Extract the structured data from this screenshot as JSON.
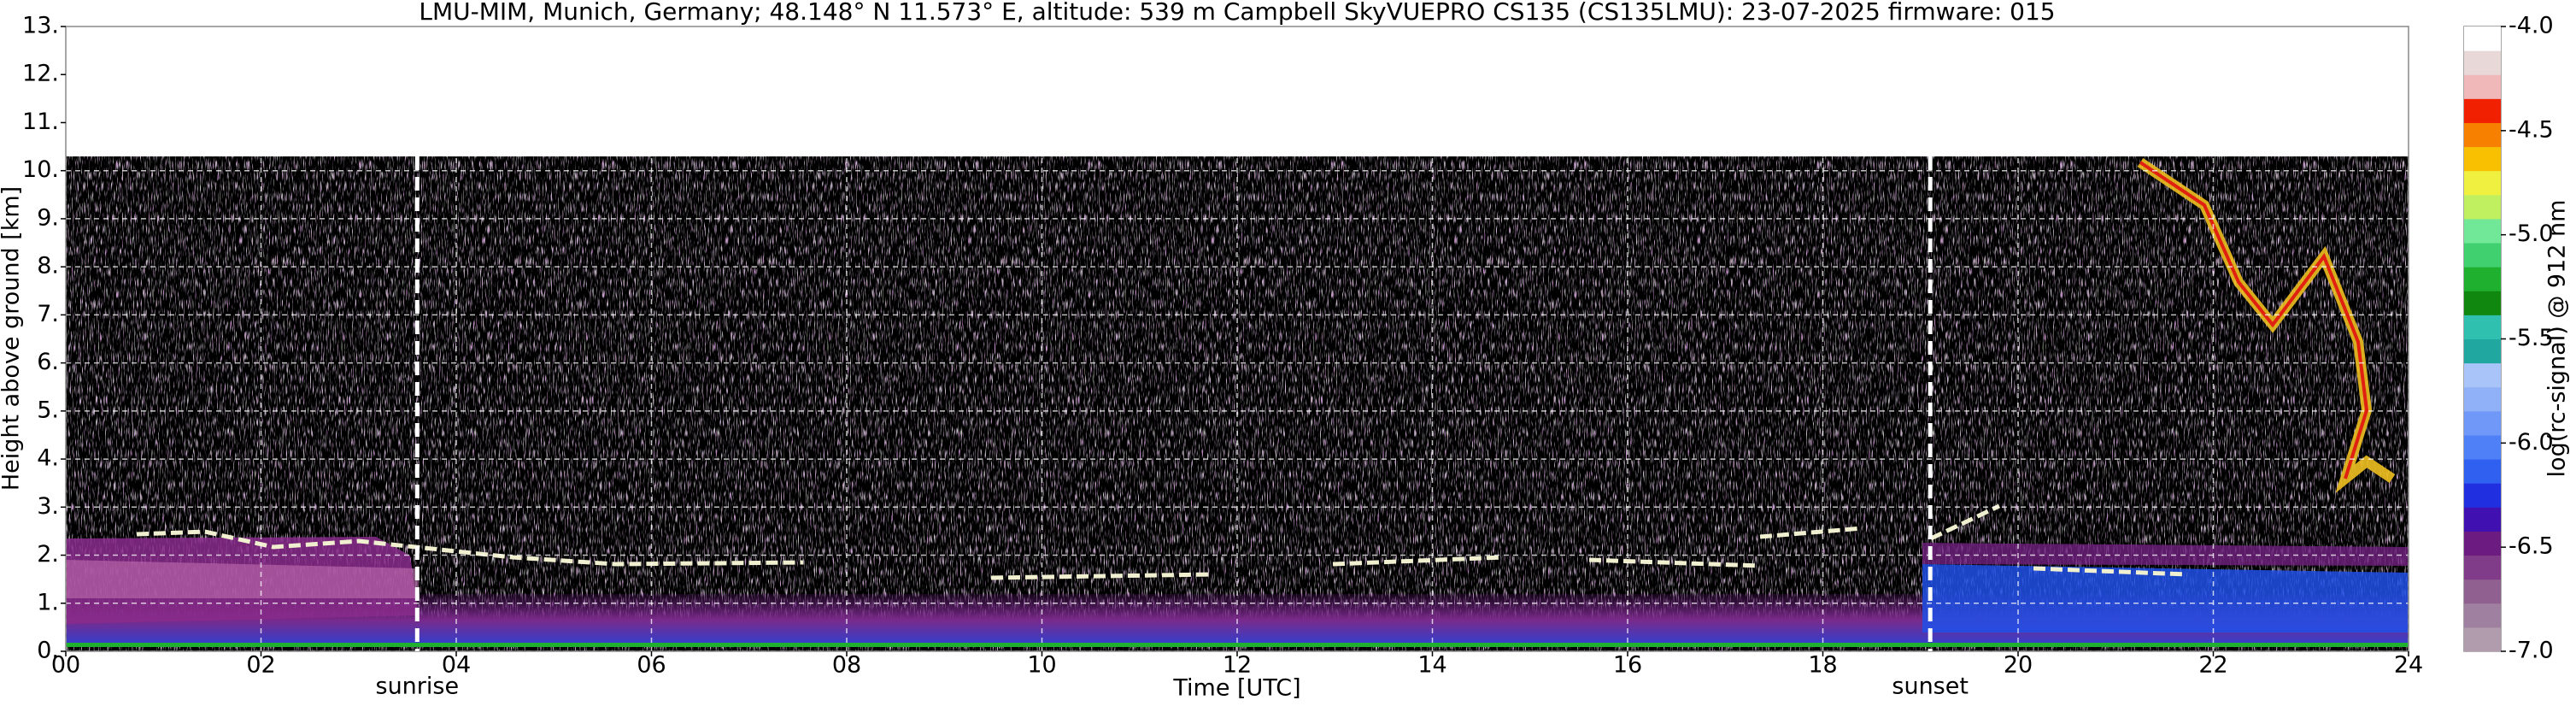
{
  "chart_data": {
    "type": "heatmap",
    "title": "LMU-MIM, Munich, Germany; 48.148° N 11.573° E, altitude: 539 m    Campbell SkyVUEPRO CS135 (CS135LMU): 23-07-2025    firmware: 015",
    "x_label": "Time [UTC]",
    "y_label": "Height above ground [km]",
    "xlim": [
      0,
      24
    ],
    "xticks": [
      {
        "value": 0,
        "label": "00"
      },
      {
        "value": 2,
        "label": "02"
      },
      {
        "value": 4,
        "label": "04"
      },
      {
        "value": 6,
        "label": "06"
      },
      {
        "value": 8,
        "label": "08"
      },
      10,
      12,
      14,
      16,
      18,
      20,
      22,
      24
    ],
    "ylim": [
      0,
      13
    ],
    "yticks": [
      {
        "value": 0,
        "label": "0."
      },
      {
        "value": 1,
        "label": "1."
      },
      {
        "value": 2,
        "label": "2."
      },
      {
        "value": 3,
        "label": "3."
      },
      {
        "value": 4,
        "label": "4."
      },
      {
        "value": 5,
        "label": "5."
      },
      {
        "value": 6,
        "label": "6."
      },
      {
        "value": 7,
        "label": "7."
      },
      {
        "value": 8,
        "label": "8."
      },
      {
        "value": 9,
        "label": "9."
      },
      {
        "value": 10,
        "label": "10."
      },
      {
        "value": 11,
        "label": "11."
      },
      {
        "value": 12,
        "label": "12."
      },
      {
        "value": 13,
        "label": "13."
      }
    ],
    "grid": true,
    "annotations": [
      {
        "x": 3.6,
        "text": "sunrise"
      },
      {
        "x": 19.1,
        "text": "sunset"
      }
    ],
    "colorbar": {
      "label": "log(rc-signal) @ 912 nm",
      "lim": [
        -7,
        -4
      ],
      "ticks": [
        {
          "value": -7,
          "label": "-7.0"
        },
        {
          "value": -6.5,
          "label": "-6.5"
        },
        {
          "value": -6,
          "label": "-6.0"
        },
        {
          "value": -5.5,
          "label": "-5.5"
        },
        {
          "value": -5,
          "label": "-5.0"
        },
        {
          "value": -4.5,
          "label": "-4.5"
        },
        {
          "value": -4,
          "label": "-4.0"
        }
      ],
      "colors": [
        "#b09cac",
        "#a080a0",
        "#906090",
        "#803c88",
        "#6c1c80",
        "#4010b0",
        "#2030e0",
        "#3060f0",
        "#5080f8",
        "#7098f8",
        "#90b0f8",
        "#a8c4f8",
        "#20a8a0",
        "#30c0b0",
        "#108810",
        "#20b030",
        "#40d070",
        "#70e898",
        "#c0f060",
        "#f0f040",
        "#f8c000",
        "#f88000",
        "#f02000",
        "#f0b8b8",
        "#e8d8d8",
        "#ffffff"
      ]
    }
  }
}
